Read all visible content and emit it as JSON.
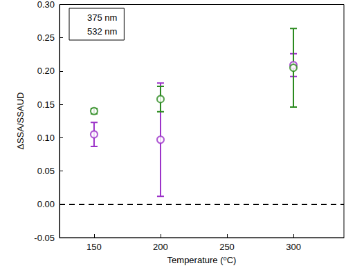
{
  "chart_data": {
    "type": "scatter",
    "xlabel": "Temperature (⁰C)",
    "ylabel": "ΔSSA/SSAUD",
    "xlim": [
      124,
      338
    ],
    "xticks": [
      150,
      200,
      250,
      300
    ],
    "ylim": [
      -0.05,
      0.3
    ],
    "yticks": [
      {
        "value": -0.05,
        "label": "-0.05"
      },
      {
        "value": 0,
        "label": "0.00"
      },
      {
        "value": 0.05,
        "label": "0.05"
      },
      {
        "value": 0.1,
        "label": "0.10"
      },
      {
        "value": 0.15,
        "label": "0.15"
      },
      {
        "value": 0.2,
        "label": "0.20"
      },
      {
        "value": 0.25,
        "label": "0.25"
      },
      {
        "value": 0.3,
        "label": "0.30"
      }
    ],
    "grid": false,
    "legend": "upper left",
    "marker": "open_circle",
    "hlines": [
      {
        "y": 0,
        "line_style": "dashed"
      }
    ],
    "series": [
      {
        "name": "375 nm",
        "color": "#9b30c8",
        "x": [
          150,
          200,
          300
        ],
        "values": [
          0.105,
          0.097,
          0.209
        ],
        "errors": [
          0.018,
          0.085,
          0.017
        ]
      },
      {
        "name": "532 nm",
        "color": "#2a8a1e",
        "x": [
          150,
          200,
          300
        ],
        "values": [
          0.14,
          0.158,
          0.205
        ],
        "errors": [
          0.004,
          0.019,
          0.059
        ]
      }
    ]
  }
}
